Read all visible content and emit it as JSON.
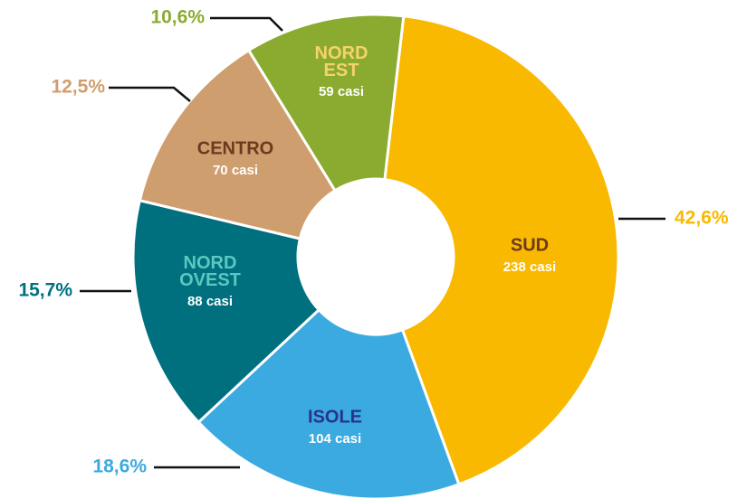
{
  "chart_data": {
    "type": "donut",
    "categories": [
      "SUD",
      "ISOLE",
      "NORD OVEST",
      "CENTRO",
      "NORD EST"
    ],
    "values": [
      42.6,
      18.6,
      15.7,
      12.5,
      10.6
    ],
    "value_labels": [
      "42,6%",
      "18,6%",
      "15,7%",
      "12,5%",
      "10,6%"
    ],
    "case_labels": [
      "238 casi",
      "104 casi",
      "88 casi",
      "70 casi",
      "59 casi"
    ],
    "colors": [
      "#f9b900",
      "#3aaae0",
      "#00707f",
      "#cf9e6e",
      "#8aab2f"
    ],
    "label_colors": [
      "#6b3a1f",
      "#2a3388",
      "#5cc8c0",
      "#6b3a1f",
      "#f5d36a"
    ]
  }
}
